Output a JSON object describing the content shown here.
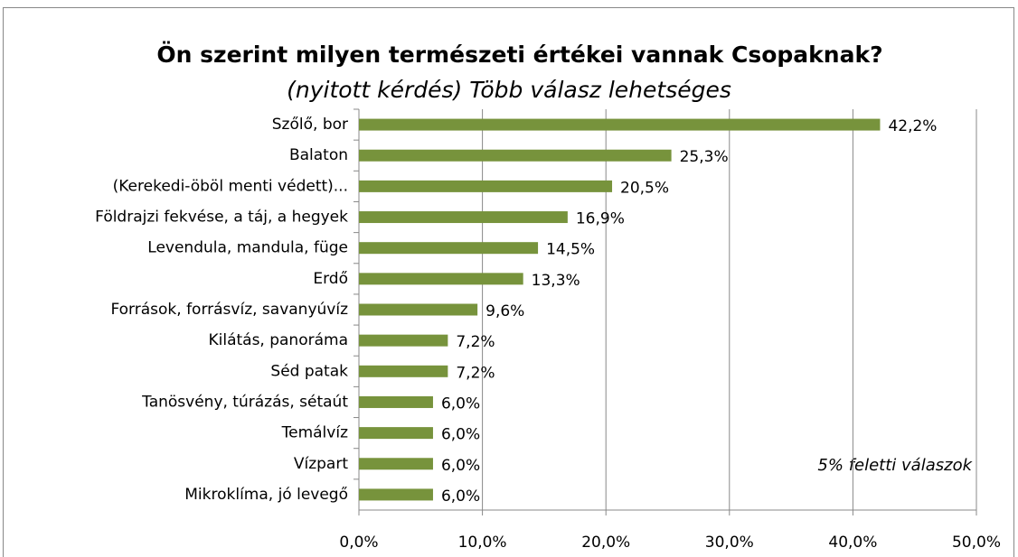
{
  "chart_data": {
    "type": "bar",
    "orientation": "horizontal",
    "title": "Ön szerint milyen természeti értékei vannak Csopaknak?",
    "subtitle": "(nyitott kérdés) Több válasz lehetséges",
    "annotation": "5% feletti válaszok",
    "categories": [
      "Szőlő, bor",
      "Balaton",
      "(Kerekedi-öböl menti védett)...",
      "Földrajzi fekvése, a táj, a hegyek",
      "Levendula, mandula, füge",
      "Erdő",
      "Források, forrásvíz, savanyúvíz",
      "Kilátás, panoráma",
      "Séd patak",
      "Tanösvény, túrázás, sétaút",
      "Temálvíz",
      "Vízpart",
      "Mikroklíma, jó levegő"
    ],
    "values": [
      42.2,
      25.3,
      20.5,
      16.9,
      14.5,
      13.3,
      9.6,
      7.2,
      7.2,
      6.0,
      6.0,
      6.0,
      6.0
    ],
    "value_labels": [
      "42,2%",
      "25,3%",
      "20,5%",
      "16,9%",
      "14,5%",
      "13,3%",
      "9,6%",
      "7,2%",
      "7,2%",
      "6,0%",
      "6,0%",
      "6,0%",
      "6,0%"
    ],
    "color": "#77933c",
    "xlim": [
      0,
      50
    ],
    "xticks": [
      {
        "value": 0,
        "label": "0,0%"
      },
      {
        "value": 10,
        "label": "10,0%"
      },
      {
        "value": 20,
        "label": "20,0%"
      },
      {
        "value": 30,
        "label": "30,0%"
      },
      {
        "value": 40,
        "label": "40,0%"
      },
      {
        "value": 50,
        "label": "50,0%"
      }
    ],
    "grid": true
  }
}
